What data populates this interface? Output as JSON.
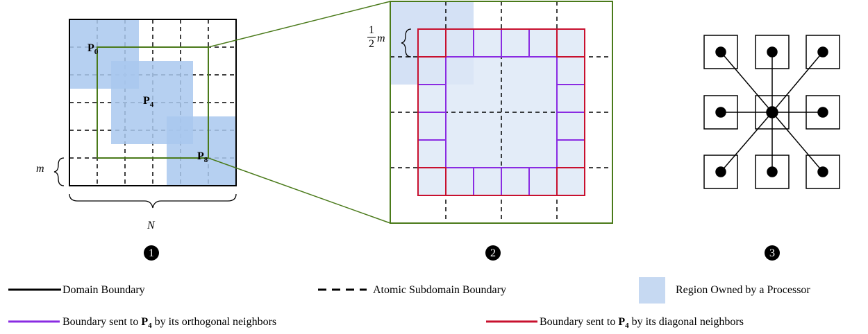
{
  "panel1": {
    "labels": [
      {
        "base": "P",
        "sub": "0"
      },
      {
        "base": "P",
        "sub": "4"
      },
      {
        "base": "P",
        "sub": "8"
      }
    ],
    "cell_size_label": "m",
    "domain_size_label": "N"
  },
  "panel2": {
    "fraction": {
      "numerator": "1",
      "denominator": "2",
      "symbol": "m"
    }
  },
  "panel_numbers": [
    "1",
    "2",
    "3"
  ],
  "legend": {
    "domain_boundary": "Domain Boundary",
    "atomic_boundary": "Atomic Subdomain Boundary",
    "region_owned": "Region Owned by a Processor",
    "orthogonal": {
      "before": "Boundary sent to ",
      "base": "P",
      "sub": "4",
      "after": " by its orthogonal neighbors"
    },
    "diagonal": {
      "before": "Boundary sent to ",
      "base": "P",
      "sub": "4",
      "after": " by its diagonal neighbors"
    }
  }
}
